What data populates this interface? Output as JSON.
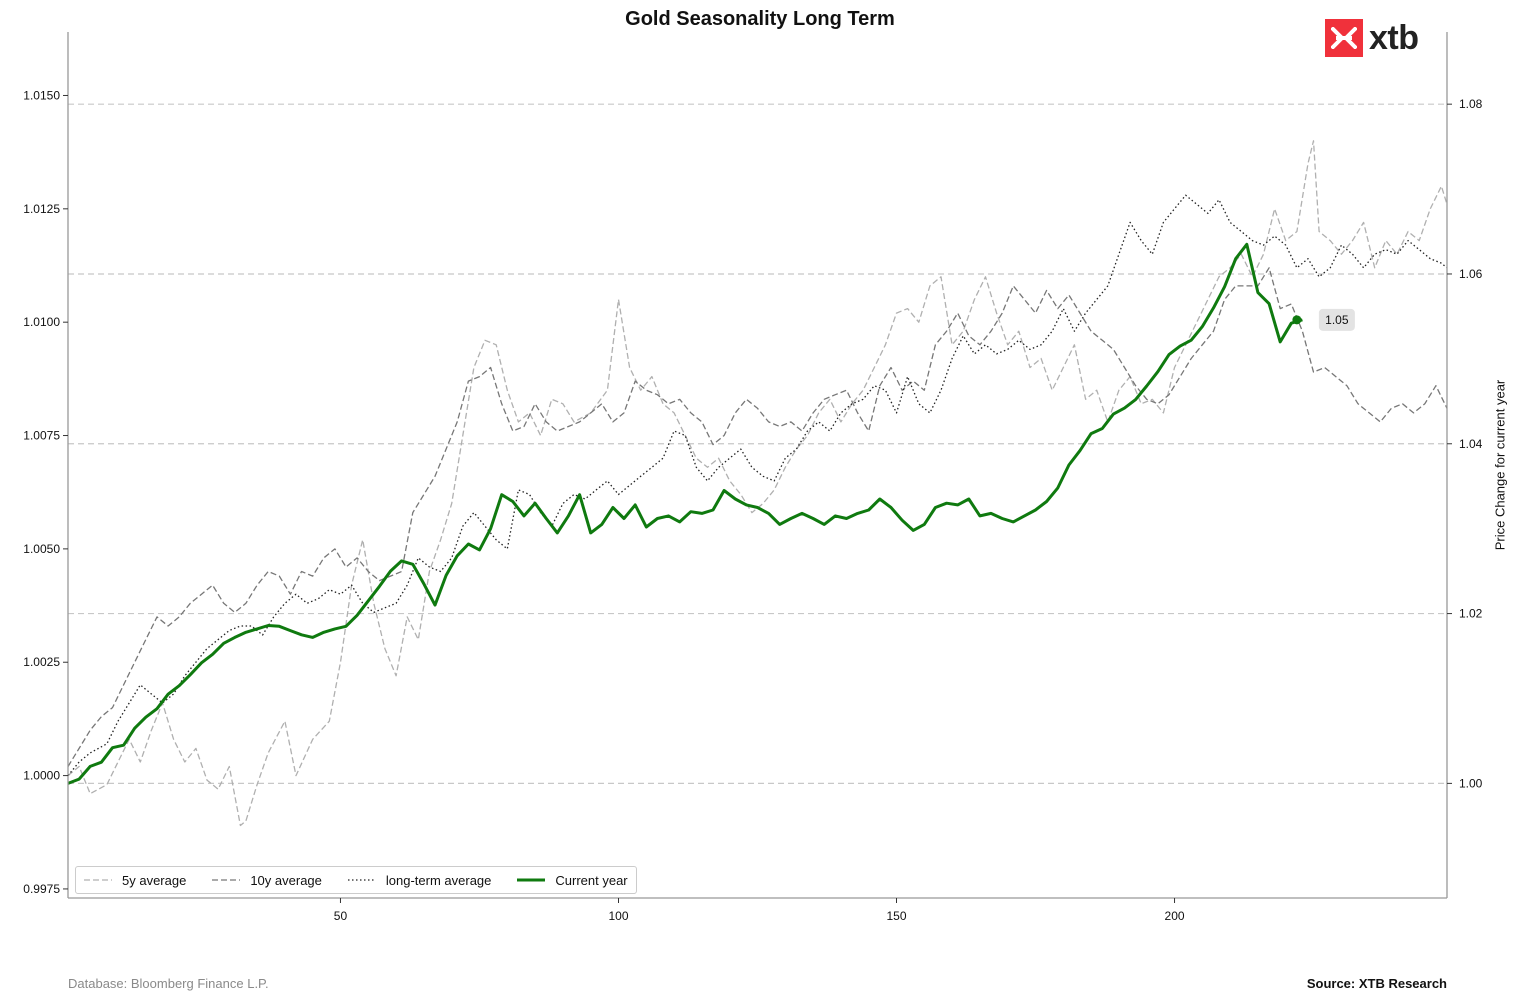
{
  "title": "Gold Seasonality Long Term",
  "footer_left": "Database: Bloomberg Finance L.P.",
  "footer_right": "Source: XTB Research",
  "logo": {
    "text": "xtb",
    "icon": "xtb-x-icon",
    "color": "#f0313b"
  },
  "chart_data": {
    "type": "line",
    "title": "Gold Seasonality Long Term",
    "xlabel": "",
    "ylabel_left": "",
    "ylabel_right": "Price Change for current year",
    "xlim": [
      1,
      249
    ],
    "ylim_left": [
      0.9973,
      1.0164
    ],
    "ylim_right": [
      0.9865,
      1.0885
    ],
    "x_ticks": [
      "50",
      "100",
      "150",
      "200"
    ],
    "x_tick_values": [
      50,
      100,
      150,
      200
    ],
    "y_left_ticks": [
      "0.9975",
      "1.0000",
      "1.0025",
      "1.0050",
      "1.0075",
      "1.0100",
      "1.0125",
      "1.0150"
    ],
    "y_left_tick_values": [
      0.9975,
      1.0,
      1.0025,
      1.005,
      1.0075,
      1.01,
      1.0125,
      1.015
    ],
    "y_right_ticks": [
      "1.00",
      "1.02",
      "1.04",
      "1.06",
      "1.08"
    ],
    "y_right_tick_values": [
      1.0,
      1.02,
      1.04,
      1.06,
      1.08
    ],
    "grid": "horizontal dashed lines at right-axis ticks",
    "legend_position": "bottom-left",
    "annotation": {
      "text": "1.05",
      "x": 222,
      "y": 1.0546
    },
    "colors": {
      "five_year": "#b0b0b0",
      "ten_year": "#777777",
      "long_term": "#222222",
      "current": "#0f7a0f",
      "grid": "#c8c8c8"
    },
    "series": [
      {
        "name": "5y average",
        "axis": "left",
        "style": "dashed-light",
        "x": [
          1,
          3,
          5,
          8,
          10,
          12,
          14,
          16,
          18,
          20,
          22,
          24,
          26,
          28,
          30,
          32,
          33,
          35,
          37,
          40,
          42,
          45,
          48,
          50,
          52,
          54,
          56,
          58,
          60,
          62,
          64,
          66,
          68,
          70,
          72,
          74,
          76,
          78,
          80,
          82,
          84,
          86,
          88,
          90,
          92,
          95,
          98,
          100,
          102,
          104,
          106,
          108,
          110,
          112,
          114,
          116,
          118,
          120,
          122,
          124,
          126,
          128,
          130,
          132,
          134,
          136,
          138,
          140,
          142,
          144,
          146,
          148,
          150,
          152,
          154,
          156,
          158,
          160,
          162,
          164,
          166,
          168,
          170,
          172,
          174,
          176,
          178,
          180,
          182,
          184,
          186,
          188,
          190,
          192,
          194,
          196,
          198,
          200,
          202,
          204,
          206,
          208,
          210,
          212,
          214,
          216,
          218,
          220,
          222,
          224,
          225,
          226,
          228,
          230,
          232,
          234,
          236,
          238,
          240,
          242,
          244,
          246,
          248,
          249
        ],
        "y": [
          1.0,
          1.0002,
          0.9996,
          0.9998,
          1.0003,
          1.0008,
          1.0003,
          1.001,
          1.0016,
          1.0008,
          1.0003,
          1.0006,
          0.9999,
          0.9997,
          1.0002,
          0.9989,
          0.999,
          0.9998,
          1.0005,
          1.0012,
          1.0,
          1.0008,
          1.0012,
          1.0025,
          1.0042,
          1.0052,
          1.0038,
          1.0028,
          1.0022,
          1.0035,
          1.003,
          1.0045,
          1.0052,
          1.006,
          1.0075,
          1.009,
          1.0096,
          1.0095,
          1.0085,
          1.0078,
          1.008,
          1.0075,
          1.0083,
          1.0082,
          1.0078,
          1.008,
          1.0085,
          1.0105,
          1.009,
          1.0085,
          1.0088,
          1.0082,
          1.008,
          1.0075,
          1.007,
          1.0068,
          1.007,
          1.0065,
          1.0062,
          1.0058,
          1.006,
          1.0063,
          1.0068,
          1.0072,
          1.0075,
          1.008,
          1.0083,
          1.0078,
          1.0082,
          1.0085,
          1.009,
          1.0095,
          1.0102,
          1.0103,
          1.01,
          1.0108,
          1.011,
          1.0095,
          1.0098,
          1.0105,
          1.011,
          1.0102,
          1.0095,
          1.0098,
          1.009,
          1.0092,
          1.0085,
          1.009,
          1.0095,
          1.0083,
          1.0085,
          1.0078,
          1.0085,
          1.0088,
          1.0082,
          1.0083,
          1.008,
          1.009,
          1.0095,
          1.01,
          1.0105,
          1.011,
          1.0112,
          1.0115,
          1.011,
          1.0115,
          1.0125,
          1.0118,
          1.012,
          1.0135,
          1.014,
          1.012,
          1.0118,
          1.0115,
          1.0118,
          1.0122,
          1.0112,
          1.0118,
          1.0115,
          1.012,
          1.0118,
          1.0125,
          1.013,
          1.0126
        ]
      },
      {
        "name": "10y average",
        "axis": "left",
        "style": "dashed-dark",
        "x": [
          1,
          3,
          5,
          7,
          9,
          11,
          13,
          15,
          17,
          19,
          21,
          23,
          25,
          27,
          29,
          31,
          33,
          35,
          37,
          39,
          41,
          43,
          45,
          47,
          49,
          51,
          53,
          55,
          57,
          59,
          61,
          63,
          65,
          67,
          69,
          71,
          73,
          75,
          77,
          79,
          81,
          83,
          85,
          87,
          89,
          91,
          93,
          95,
          97,
          99,
          101,
          103,
          105,
          107,
          109,
          111,
          113,
          115,
          117,
          119,
          121,
          123,
          125,
          127,
          129,
          131,
          133,
          135,
          137,
          139,
          141,
          143,
          145,
          147,
          149,
          151,
          153,
          155,
          157,
          159,
          161,
          163,
          165,
          167,
          169,
          171,
          173,
          175,
          177,
          179,
          181,
          183,
          185,
          187,
          189,
          191,
          193,
          195,
          197,
          199,
          201,
          203,
          205,
          207,
          209,
          211,
          213,
          215,
          217,
          219,
          221,
          223,
          225,
          227,
          229,
          231,
          233,
          235,
          237,
          239,
          241,
          243,
          245,
          247,
          249
        ],
        "y": [
          1.0002,
          1.0006,
          1.001,
          1.0013,
          1.0015,
          1.002,
          1.0025,
          1.003,
          1.0035,
          1.0033,
          1.0035,
          1.0038,
          1.004,
          1.0042,
          1.0038,
          1.0036,
          1.0038,
          1.0042,
          1.0045,
          1.0044,
          1.004,
          1.0045,
          1.0044,
          1.0048,
          1.005,
          1.0046,
          1.0048,
          1.0045,
          1.0043,
          1.0044,
          1.0045,
          1.0058,
          1.0062,
          1.0066,
          1.0072,
          1.0078,
          1.0087,
          1.0088,
          1.009,
          1.0082,
          1.0076,
          1.0077,
          1.0082,
          1.0078,
          1.0076,
          1.0077,
          1.0078,
          1.008,
          1.0082,
          1.0078,
          1.008,
          1.0087,
          1.0085,
          1.0084,
          1.0082,
          1.0083,
          1.008,
          1.0078,
          1.0073,
          1.0075,
          1.008,
          1.0083,
          1.0081,
          1.0078,
          1.0077,
          1.0078,
          1.0076,
          1.008,
          1.0083,
          1.0084,
          1.0085,
          1.008,
          1.0076,
          1.0086,
          1.009,
          1.0085,
          1.0087,
          1.0085,
          1.0095,
          1.0098,
          1.0102,
          1.0097,
          1.0095,
          1.0098,
          1.0102,
          1.0108,
          1.0105,
          1.0102,
          1.0107,
          1.0103,
          1.0106,
          1.0102,
          1.0098,
          1.0096,
          1.0094,
          1.009,
          1.0086,
          1.0083,
          1.0082,
          1.0084,
          1.0088,
          1.0092,
          1.0095,
          1.0098,
          1.0105,
          1.0108,
          1.0108,
          1.0108,
          1.0112,
          1.0103,
          1.0104,
          1.0098,
          1.0089,
          1.009,
          1.0088,
          1.0086,
          1.0082,
          1.008,
          1.0078,
          1.0081,
          1.0082,
          1.008,
          1.0082,
          1.0086,
          1.0081
        ]
      },
      {
        "name": "long-term average",
        "axis": "left",
        "style": "dotted",
        "x": [
          1,
          3,
          5,
          8,
          10,
          12,
          14,
          16,
          18,
          20,
          22,
          24,
          26,
          28,
          30,
          32,
          34,
          36,
          38,
          40,
          42,
          44,
          46,
          48,
          50,
          52,
          54,
          56,
          58,
          60,
          62,
          64,
          66,
          68,
          70,
          72,
          74,
          76,
          78,
          80,
          82,
          84,
          86,
          88,
          90,
          92,
          94,
          96,
          98,
          100,
          102,
          104,
          106,
          108,
          110,
          112,
          114,
          116,
          118,
          120,
          122,
          124,
          126,
          128,
          130,
          132,
          134,
          136,
          138,
          140,
          142,
          144,
          146,
          148,
          150,
          152,
          154,
          156,
          158,
          160,
          162,
          164,
          166,
          168,
          170,
          172,
          174,
          176,
          178,
          180,
          182,
          184,
          186,
          188,
          190,
          192,
          194,
          196,
          198,
          200,
          202,
          204,
          206,
          208,
          210,
          212,
          214,
          216,
          218,
          220,
          222,
          224,
          226,
          228,
          230,
          232,
          234,
          236,
          238,
          240,
          242,
          244,
          246,
          248,
          249
        ],
        "y": [
          1.0,
          1.0003,
          1.0005,
          1.0007,
          1.0012,
          1.0016,
          1.002,
          1.0018,
          1.0016,
          1.0018,
          1.0022,
          1.0025,
          1.0028,
          1.003,
          1.0032,
          1.0033,
          1.0033,
          1.0031,
          1.0035,
          1.0038,
          1.004,
          1.0038,
          1.0039,
          1.0041,
          1.004,
          1.0042,
          1.0038,
          1.0036,
          1.0037,
          1.0038,
          1.0042,
          1.0048,
          1.0046,
          1.0045,
          1.0048,
          1.0055,
          1.0058,
          1.0055,
          1.0052,
          1.005,
          1.0063,
          1.0062,
          1.0058,
          1.0055,
          1.006,
          1.0062,
          1.0061,
          1.0063,
          1.0065,
          1.0062,
          1.0064,
          1.0066,
          1.0068,
          1.007,
          1.0076,
          1.0075,
          1.0068,
          1.0065,
          1.0068,
          1.007,
          1.0072,
          1.0068,
          1.0066,
          1.0065,
          1.007,
          1.0072,
          1.0076,
          1.0078,
          1.0076,
          1.008,
          1.0082,
          1.0083,
          1.0086,
          1.0085,
          1.008,
          1.0088,
          1.0082,
          1.008,
          1.0085,
          1.0092,
          1.0097,
          1.0093,
          1.0095,
          1.0093,
          1.0094,
          1.0096,
          1.0094,
          1.0095,
          1.0098,
          1.0103,
          1.0098,
          1.0102,
          1.0105,
          1.0108,
          1.0115,
          1.0122,
          1.0118,
          1.0115,
          1.0122,
          1.0125,
          1.0128,
          1.0126,
          1.0124,
          1.0127,
          1.0122,
          1.012,
          1.0118,
          1.0117,
          1.0119,
          1.0117,
          1.0112,
          1.0114,
          1.011,
          1.0112,
          1.0117,
          1.0115,
          1.0112,
          1.0115,
          1.0116,
          1.0115,
          1.0118,
          1.0116,
          1.0114,
          1.0113,
          1.0112
        ]
      },
      {
        "name": "Current year",
        "axis": "right",
        "style": "solid-green",
        "x": [
          1,
          3,
          5,
          7,
          9,
          11,
          13,
          15,
          17,
          19,
          21,
          23,
          25,
          27,
          29,
          31,
          33,
          35,
          37,
          39,
          41,
          43,
          45,
          47,
          49,
          51,
          53,
          55,
          57,
          59,
          61,
          63,
          65,
          67,
          69,
          71,
          73,
          75,
          77,
          79,
          81,
          83,
          85,
          87,
          89,
          91,
          93,
          95,
          97,
          99,
          101,
          103,
          105,
          107,
          109,
          111,
          113,
          115,
          117,
          119,
          121,
          123,
          125,
          127,
          129,
          131,
          133,
          135,
          137,
          139,
          141,
          143,
          145,
          147,
          149,
          151,
          153,
          155,
          157,
          159,
          161,
          163,
          165,
          167,
          169,
          171,
          173,
          175,
          177,
          179,
          181,
          183,
          185,
          187,
          189,
          191,
          193,
          195,
          197,
          199,
          201,
          203,
          205,
          207,
          209,
          211,
          213,
          215,
          217,
          219,
          221,
          223
        ],
        "y": [
          1.0,
          1.0005,
          1.002,
          1.0025,
          1.0042,
          1.0045,
          1.0065,
          1.0078,
          1.0088,
          1.0105,
          1.0115,
          1.0128,
          1.0142,
          1.0152,
          1.0165,
          1.0172,
          1.0178,
          1.0182,
          1.0186,
          1.0185,
          1.018,
          1.0175,
          1.0172,
          1.0178,
          1.0182,
          1.0185,
          1.0198,
          1.0215,
          1.0232,
          1.025,
          1.0262,
          1.0258,
          1.0235,
          1.021,
          1.0245,
          1.0268,
          1.0282,
          1.0275,
          1.03,
          1.034,
          1.0332,
          1.0315,
          1.033,
          1.0312,
          1.0295,
          1.0315,
          1.034,
          1.0295,
          1.0305,
          1.0325,
          1.0312,
          1.0328,
          1.0302,
          1.0312,
          1.0315,
          1.0308,
          1.032,
          1.0318,
          1.0322,
          1.0345,
          1.0335,
          1.0328,
          1.0325,
          1.0318,
          1.0305,
          1.0312,
          1.0318,
          1.0312,
          1.0305,
          1.0315,
          1.0312,
          1.0318,
          1.0322,
          1.0335,
          1.0325,
          1.031,
          1.0298,
          1.0305,
          1.0325,
          1.033,
          1.0328,
          1.0335,
          1.0315,
          1.0318,
          1.0312,
          1.0308,
          1.0315,
          1.0322,
          1.0332,
          1.0348,
          1.0375,
          1.0392,
          1.0412,
          1.0418,
          1.0435,
          1.0442,
          1.0452,
          1.0468,
          1.0485,
          1.0505,
          1.0515,
          1.0522,
          1.0538,
          1.056,
          1.0585,
          1.0618,
          1.0635,
          1.0578,
          1.0565,
          1.052,
          1.0542,
          1.0546
        ]
      }
    ]
  }
}
